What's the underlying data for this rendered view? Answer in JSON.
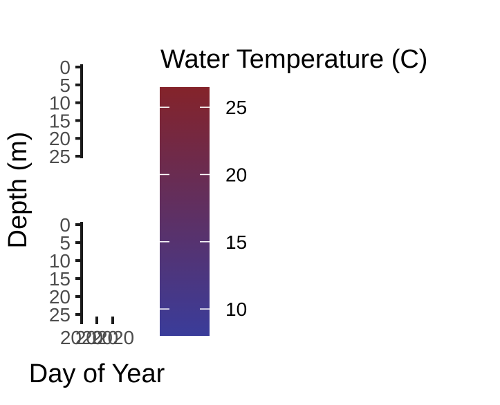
{
  "chart_data": {
    "type": "heatmap",
    "facets": [
      {
        "y_ticks": [
          "0",
          "5",
          "10",
          "15",
          "20",
          "25"
        ],
        "x_ticks": []
      },
      {
        "y_ticks": [
          "0",
          "5",
          "10",
          "15",
          "20",
          "25"
        ],
        "x_ticks": [
          "2020",
          "2020",
          "2020"
        ]
      }
    ],
    "xlabel": "Day of Year",
    "ylabel": "Depth (m)",
    "y_reversed": true,
    "ylim": [
      0,
      25
    ],
    "legend": {
      "title": "Water Temperature (C)",
      "ticks": [
        {
          "label": "25",
          "value": 25
        },
        {
          "label": "20",
          "value": 20
        },
        {
          "label": "15",
          "value": 15
        },
        {
          "label": "10",
          "value": 10
        }
      ],
      "range": [
        8,
        26.5
      ],
      "color_low": "#3a3c9a",
      "color_high": "#84232a",
      "placement": "right"
    },
    "grid": false
  }
}
